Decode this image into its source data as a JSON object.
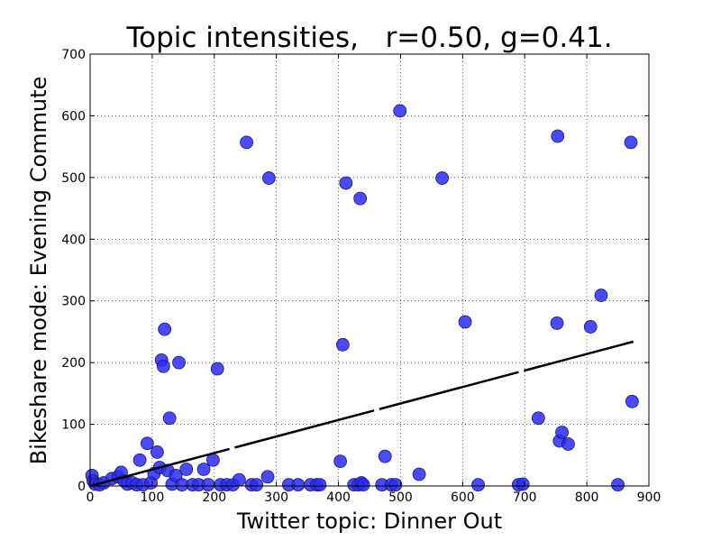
{
  "chart_data": {
    "type": "scatter",
    "title": "Topic intensities,   r=0.50, g=0.41.",
    "xlabel": "Twitter topic: Dinner Out",
    "ylabel": "Bikeshare mode: Evening Commute",
    "xlim": [
      0,
      900
    ],
    "ylim": [
      0,
      700
    ],
    "x_ticks": [
      0,
      100,
      200,
      300,
      400,
      500,
      600,
      700,
      800,
      900
    ],
    "y_ticks": [
      0,
      100,
      200,
      300,
      400,
      500,
      600,
      700
    ],
    "grid": true,
    "point_color": "#2b2bf5",
    "fit_line_color": "#000000",
    "points": [
      {
        "x": 3,
        "y": 17
      },
      {
        "x": 5,
        "y": 8
      },
      {
        "x": 8,
        "y": 3
      },
      {
        "x": 15,
        "y": 2
      },
      {
        "x": 22,
        "y": 5
      },
      {
        "x": 35,
        "y": 12
      },
      {
        "x": 45,
        "y": 15
      },
      {
        "x": 50,
        "y": 22
      },
      {
        "x": 55,
        "y": 8
      },
      {
        "x": 60,
        "y": 3
      },
      {
        "x": 68,
        "y": 5
      },
      {
        "x": 75,
        "y": 2
      },
      {
        "x": 80,
        "y": 42
      },
      {
        "x": 85,
        "y": 2
      },
      {
        "x": 92,
        "y": 69
      },
      {
        "x": 98,
        "y": 5
      },
      {
        "x": 103,
        "y": 20
      },
      {
        "x": 108,
        "y": 55
      },
      {
        "x": 112,
        "y": 30
      },
      {
        "x": 115,
        "y": 204
      },
      {
        "x": 118,
        "y": 194
      },
      {
        "x": 120,
        "y": 254
      },
      {
        "x": 125,
        "y": 25
      },
      {
        "x": 128,
        "y": 110
      },
      {
        "x": 132,
        "y": 3
      },
      {
        "x": 138,
        "y": 17
      },
      {
        "x": 143,
        "y": 200
      },
      {
        "x": 148,
        "y": 2
      },
      {
        "x": 155,
        "y": 27
      },
      {
        "x": 165,
        "y": 2
      },
      {
        "x": 175,
        "y": 2
      },
      {
        "x": 183,
        "y": 27
      },
      {
        "x": 190,
        "y": 2
      },
      {
        "x": 198,
        "y": 42
      },
      {
        "x": 205,
        "y": 190
      },
      {
        "x": 210,
        "y": 2
      },
      {
        "x": 220,
        "y": 2
      },
      {
        "x": 230,
        "y": 2
      },
      {
        "x": 240,
        "y": 10
      },
      {
        "x": 252,
        "y": 557
      },
      {
        "x": 260,
        "y": 2
      },
      {
        "x": 268,
        "y": 2
      },
      {
        "x": 286,
        "y": 15
      },
      {
        "x": 288,
        "y": 499
      },
      {
        "x": 320,
        "y": 2
      },
      {
        "x": 335,
        "y": 2
      },
      {
        "x": 355,
        "y": 2
      },
      {
        "x": 365,
        "y": 2
      },
      {
        "x": 370,
        "y": 2
      },
      {
        "x": 403,
        "y": 40
      },
      {
        "x": 407,
        "y": 229
      },
      {
        "x": 412,
        "y": 491
      },
      {
        "x": 425,
        "y": 2
      },
      {
        "x": 432,
        "y": 2
      },
      {
        "x": 435,
        "y": 466
      },
      {
        "x": 437,
        "y": 5
      },
      {
        "x": 440,
        "y": 2
      },
      {
        "x": 470,
        "y": 2
      },
      {
        "x": 475,
        "y": 48
      },
      {
        "x": 485,
        "y": 2
      },
      {
        "x": 492,
        "y": 2
      },
      {
        "x": 499,
        "y": 608
      },
      {
        "x": 530,
        "y": 19
      },
      {
        "x": 567,
        "y": 499
      },
      {
        "x": 604,
        "y": 266
      },
      {
        "x": 625,
        "y": 2
      },
      {
        "x": 690,
        "y": 2
      },
      {
        "x": 697,
        "y": 3
      },
      {
        "x": 722,
        "y": 110
      },
      {
        "x": 752,
        "y": 264
      },
      {
        "x": 753,
        "y": 567
      },
      {
        "x": 756,
        "y": 73
      },
      {
        "x": 760,
        "y": 87
      },
      {
        "x": 770,
        "y": 68
      },
      {
        "x": 806,
        "y": 258
      },
      {
        "x": 823,
        "y": 309
      },
      {
        "x": 850,
        "y": 2
      },
      {
        "x": 871,
        "y": 557
      },
      {
        "x": 873,
        "y": 137
      }
    ],
    "fit_line": {
      "x": [
        0,
        875
      ],
      "y": [
        0,
        234
      ]
    }
  }
}
